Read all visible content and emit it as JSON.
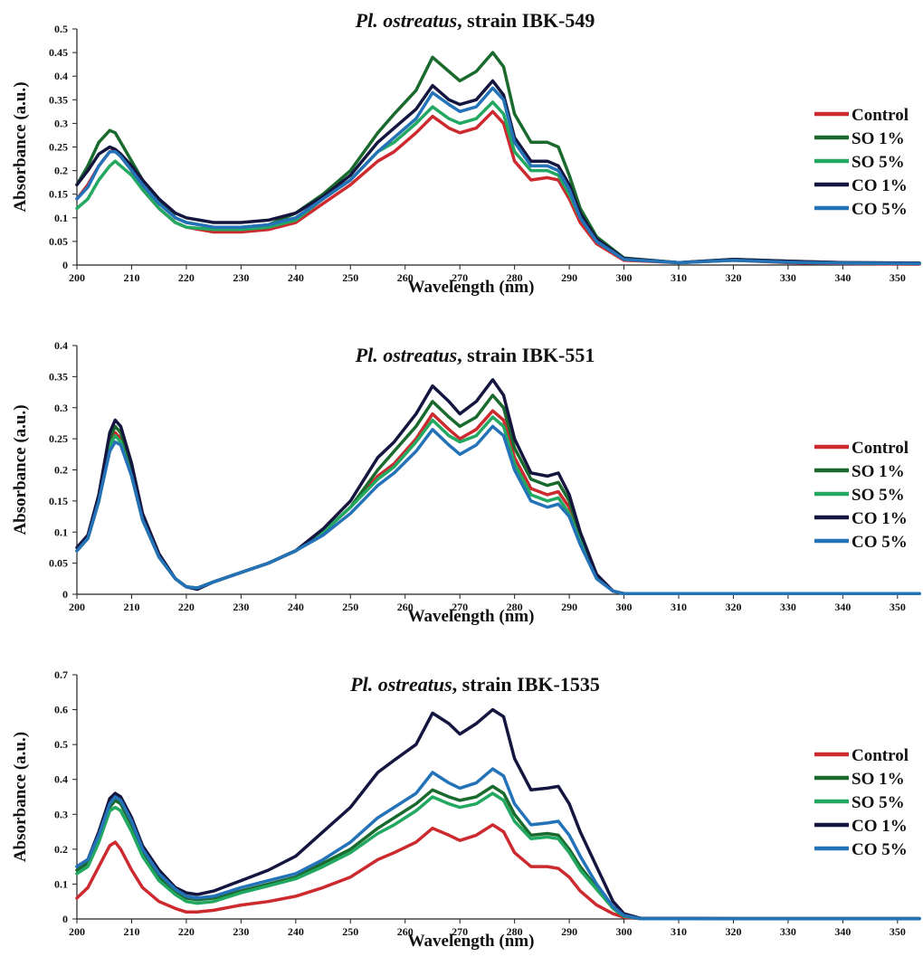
{
  "chart_data": [
    {
      "type": "line",
      "title_prefix": "Pl. ostreatus",
      "title_suffix": ", strain IBK-549",
      "xlabel": "Wavelength (nm)",
      "ylabel": "Absorbance (a.u.)",
      "xlim": [
        200,
        354
      ],
      "ylim": [
        0,
        0.5
      ],
      "xticks": [
        "200",
        "210",
        "220",
        "230",
        "240",
        "250",
        "260",
        "270",
        "280",
        "290",
        "300",
        "310",
        "320",
        "330",
        "340",
        "350"
      ],
      "yticks": [
        "0",
        "0.05",
        "0.1",
        "0.15",
        "0.2",
        "0.25",
        "0.3",
        "0.35",
        "0.4",
        "0.45",
        "0.5"
      ],
      "legend_position": "right",
      "x": [
        200,
        202,
        204,
        206,
        207,
        208,
        210,
        212,
        215,
        218,
        220,
        225,
        230,
        235,
        240,
        245,
        250,
        255,
        258,
        262,
        265,
        268,
        270,
        273,
        276,
        278,
        280,
        283,
        286,
        288,
        290,
        292,
        295,
        300,
        310,
        320,
        330,
        340,
        354
      ],
      "series": [
        {
          "name": "Control",
          "color": "#cc2a2f",
          "values": [
            0.14,
            0.17,
            0.21,
            0.24,
            0.245,
            0.23,
            0.2,
            0.16,
            0.12,
            0.09,
            0.08,
            0.07,
            0.07,
            0.075,
            0.09,
            0.13,
            0.17,
            0.22,
            0.24,
            0.28,
            0.315,
            0.29,
            0.28,
            0.29,
            0.325,
            0.3,
            0.22,
            0.18,
            0.185,
            0.18,
            0.14,
            0.09,
            0.045,
            0.01,
            0.005,
            0.01,
            0.005,
            0.003,
            0.002
          ]
        },
        {
          "name": "SO 1%",
          "color": "#1a6a2e",
          "values": [
            0.17,
            0.21,
            0.26,
            0.285,
            0.28,
            0.26,
            0.22,
            0.18,
            0.14,
            0.1,
            0.09,
            0.08,
            0.08,
            0.085,
            0.11,
            0.15,
            0.2,
            0.28,
            0.32,
            0.37,
            0.44,
            0.41,
            0.39,
            0.41,
            0.45,
            0.42,
            0.32,
            0.26,
            0.26,
            0.25,
            0.19,
            0.12,
            0.06,
            0.015,
            0.005,
            0.012,
            0.008,
            0.005,
            0.004
          ]
        },
        {
          "name": "SO 5%",
          "color": "#22a860",
          "values": [
            0.12,
            0.14,
            0.18,
            0.21,
            0.22,
            0.21,
            0.19,
            0.16,
            0.12,
            0.09,
            0.08,
            0.075,
            0.075,
            0.08,
            0.095,
            0.14,
            0.18,
            0.24,
            0.26,
            0.3,
            0.335,
            0.31,
            0.3,
            0.31,
            0.345,
            0.32,
            0.24,
            0.2,
            0.2,
            0.19,
            0.15,
            0.1,
            0.05,
            0.012,
            0.005,
            0.01,
            0.006,
            0.004,
            0.003
          ]
        },
        {
          "name": "CO 1%",
          "color": "#15163f",
          "values": [
            0.17,
            0.2,
            0.235,
            0.25,
            0.245,
            0.235,
            0.21,
            0.18,
            0.14,
            0.11,
            0.1,
            0.09,
            0.09,
            0.095,
            0.11,
            0.145,
            0.19,
            0.26,
            0.29,
            0.33,
            0.38,
            0.35,
            0.34,
            0.35,
            0.39,
            0.36,
            0.27,
            0.22,
            0.22,
            0.21,
            0.17,
            0.11,
            0.055,
            0.014,
            0.005,
            0.012,
            0.008,
            0.005,
            0.004
          ]
        },
        {
          "name": "CO 5%",
          "color": "#2472b8",
          "values": [
            0.14,
            0.165,
            0.21,
            0.24,
            0.24,
            0.23,
            0.2,
            0.17,
            0.13,
            0.1,
            0.09,
            0.08,
            0.08,
            0.085,
            0.1,
            0.14,
            0.18,
            0.24,
            0.27,
            0.31,
            0.365,
            0.34,
            0.325,
            0.335,
            0.375,
            0.35,
            0.26,
            0.21,
            0.21,
            0.2,
            0.16,
            0.1,
            0.05,
            0.012,
            0.005,
            0.01,
            0.006,
            0.004,
            0.003
          ]
        }
      ]
    },
    {
      "type": "line",
      "title_prefix": "Pl. ostreatus",
      "title_suffix": ", strain IBK-551",
      "xlabel": "Wavelength (nm)",
      "ylabel": "Absorbance (a.u.)",
      "xlim": [
        200,
        354
      ],
      "ylim": [
        0,
        0.4
      ],
      "xticks": [
        "200",
        "210",
        "220",
        "230",
        "240",
        "250",
        "260",
        "270",
        "280",
        "290",
        "300",
        "310",
        "320",
        "330",
        "340",
        "350"
      ],
      "yticks": [
        "0",
        "0.05",
        "0.1",
        "0.15",
        "0.2",
        "0.25",
        "0.3",
        "0.35",
        "0.4"
      ],
      "legend_position": "right",
      "x": [
        200,
        202,
        204,
        206,
        207,
        208,
        210,
        212,
        215,
        218,
        220,
        222,
        225,
        230,
        235,
        240,
        245,
        250,
        255,
        258,
        262,
        265,
        268,
        270,
        273,
        276,
        278,
        280,
        283,
        286,
        288,
        290,
        292,
        295,
        298,
        300,
        320,
        354
      ],
      "series": [
        {
          "name": "Control",
          "color": "#cc2a2f",
          "values": [
            0.07,
            0.09,
            0.15,
            0.24,
            0.26,
            0.25,
            0.19,
            0.12,
            0.06,
            0.025,
            0.012,
            0.01,
            0.02,
            0.035,
            0.05,
            0.07,
            0.1,
            0.14,
            0.19,
            0.21,
            0.25,
            0.29,
            0.265,
            0.25,
            0.265,
            0.295,
            0.28,
            0.22,
            0.17,
            0.16,
            0.165,
            0.14,
            0.09,
            0.03,
            0.005,
            0.001,
            0.001,
            0.001
          ]
        },
        {
          "name": "SO 1%",
          "color": "#1a6a2e",
          "values": [
            0.07,
            0.09,
            0.15,
            0.25,
            0.27,
            0.26,
            0.2,
            0.12,
            0.06,
            0.025,
            0.012,
            0.01,
            0.02,
            0.035,
            0.05,
            0.07,
            0.1,
            0.14,
            0.2,
            0.23,
            0.27,
            0.31,
            0.285,
            0.27,
            0.285,
            0.32,
            0.3,
            0.235,
            0.185,
            0.175,
            0.18,
            0.15,
            0.095,
            0.03,
            0.005,
            0.001,
            0.001,
            0.001
          ]
        },
        {
          "name": "SO 5%",
          "color": "#22a860",
          "values": [
            0.07,
            0.09,
            0.15,
            0.24,
            0.255,
            0.245,
            0.19,
            0.12,
            0.06,
            0.025,
            0.012,
            0.01,
            0.02,
            0.035,
            0.05,
            0.07,
            0.1,
            0.14,
            0.185,
            0.205,
            0.245,
            0.28,
            0.255,
            0.245,
            0.255,
            0.285,
            0.27,
            0.21,
            0.16,
            0.15,
            0.155,
            0.13,
            0.085,
            0.028,
            0.005,
            0.001,
            0.001,
            0.001
          ]
        },
        {
          "name": "CO 1%",
          "color": "#15163f",
          "values": [
            0.075,
            0.095,
            0.16,
            0.26,
            0.28,
            0.27,
            0.21,
            0.13,
            0.065,
            0.025,
            0.012,
            0.008,
            0.02,
            0.035,
            0.05,
            0.07,
            0.105,
            0.15,
            0.22,
            0.245,
            0.29,
            0.335,
            0.31,
            0.29,
            0.31,
            0.345,
            0.32,
            0.25,
            0.195,
            0.19,
            0.195,
            0.16,
            0.1,
            0.032,
            0.005,
            0.001,
            0.001,
            0.001
          ]
        },
        {
          "name": "CO 5%",
          "color": "#2472b8",
          "values": [
            0.07,
            0.09,
            0.15,
            0.23,
            0.245,
            0.24,
            0.19,
            0.12,
            0.06,
            0.025,
            0.012,
            0.01,
            0.02,
            0.035,
            0.05,
            0.07,
            0.095,
            0.13,
            0.175,
            0.195,
            0.23,
            0.265,
            0.24,
            0.225,
            0.24,
            0.27,
            0.255,
            0.2,
            0.15,
            0.14,
            0.145,
            0.125,
            0.08,
            0.025,
            0.005,
            0.001,
            0.001,
            0.001
          ]
        }
      ]
    },
    {
      "type": "line",
      "title_prefix": "Pl. ostreatus",
      "title_suffix": ", strain IBK-1535",
      "xlabel": "Wavelength (nm)",
      "ylabel": "Absorbance (a.u.)",
      "xlim": [
        200,
        354
      ],
      "ylim": [
        0,
        0.7
      ],
      "xticks": [
        "200",
        "210",
        "220",
        "230",
        "240",
        "250",
        "260",
        "270",
        "280",
        "290",
        "300",
        "310",
        "320",
        "330",
        "340",
        "350"
      ],
      "yticks": [
        "0",
        "0.1",
        "0.2",
        "0.3",
        "0.4",
        "0.5",
        "0.6",
        "0.7"
      ],
      "legend_position": "right",
      "x": [
        200,
        202,
        204,
        206,
        207,
        208,
        210,
        212,
        215,
        218,
        220,
        222,
        225,
        230,
        235,
        240,
        245,
        250,
        255,
        258,
        262,
        265,
        268,
        270,
        273,
        276,
        278,
        280,
        283,
        286,
        288,
        290,
        292,
        295,
        298,
        300,
        303,
        320,
        354
      ],
      "series": [
        {
          "name": "Control",
          "color": "#cc2a2f",
          "values": [
            0.06,
            0.09,
            0.15,
            0.21,
            0.22,
            0.2,
            0.14,
            0.09,
            0.05,
            0.03,
            0.02,
            0.02,
            0.025,
            0.04,
            0.05,
            0.065,
            0.09,
            0.12,
            0.17,
            0.19,
            0.22,
            0.26,
            0.24,
            0.225,
            0.24,
            0.27,
            0.25,
            0.19,
            0.15,
            0.15,
            0.145,
            0.12,
            0.08,
            0.04,
            0.015,
            0.005,
            0.001,
            0.001,
            0.001
          ]
        },
        {
          "name": "SO 1%",
          "color": "#1a6a2e",
          "values": [
            0.14,
            0.16,
            0.23,
            0.32,
            0.34,
            0.33,
            0.27,
            0.19,
            0.12,
            0.08,
            0.06,
            0.055,
            0.06,
            0.08,
            0.1,
            0.12,
            0.16,
            0.2,
            0.26,
            0.29,
            0.33,
            0.37,
            0.35,
            0.34,
            0.35,
            0.38,
            0.36,
            0.3,
            0.24,
            0.245,
            0.24,
            0.2,
            0.15,
            0.09,
            0.03,
            0.008,
            0.001,
            0.001,
            0.001
          ]
        },
        {
          "name": "SO 5%",
          "color": "#22a860",
          "values": [
            0.13,
            0.15,
            0.22,
            0.31,
            0.32,
            0.31,
            0.25,
            0.18,
            0.11,
            0.07,
            0.05,
            0.045,
            0.05,
            0.075,
            0.095,
            0.115,
            0.15,
            0.19,
            0.245,
            0.27,
            0.31,
            0.35,
            0.33,
            0.32,
            0.33,
            0.36,
            0.34,
            0.28,
            0.23,
            0.235,
            0.23,
            0.19,
            0.14,
            0.085,
            0.03,
            0.008,
            0.001,
            0.001,
            0.001
          ]
        },
        {
          "name": "CO 1%",
          "color": "#15163f",
          "values": [
            0.15,
            0.17,
            0.25,
            0.345,
            0.36,
            0.35,
            0.29,
            0.21,
            0.14,
            0.09,
            0.075,
            0.07,
            0.08,
            0.11,
            0.14,
            0.18,
            0.25,
            0.32,
            0.42,
            0.455,
            0.5,
            0.59,
            0.56,
            0.53,
            0.56,
            0.6,
            0.58,
            0.46,
            0.37,
            0.375,
            0.38,
            0.33,
            0.25,
            0.15,
            0.05,
            0.015,
            0.002,
            0.001,
            0.001
          ]
        },
        {
          "name": "CO 5%",
          "color": "#2472b8",
          "values": [
            0.15,
            0.17,
            0.24,
            0.33,
            0.35,
            0.34,
            0.28,
            0.2,
            0.13,
            0.085,
            0.065,
            0.06,
            0.065,
            0.09,
            0.11,
            0.13,
            0.17,
            0.22,
            0.29,
            0.32,
            0.36,
            0.42,
            0.39,
            0.375,
            0.39,
            0.43,
            0.41,
            0.33,
            0.27,
            0.275,
            0.28,
            0.24,
            0.18,
            0.1,
            0.035,
            0.01,
            0.001,
            0.001,
            0.001
          ]
        }
      ]
    }
  ]
}
